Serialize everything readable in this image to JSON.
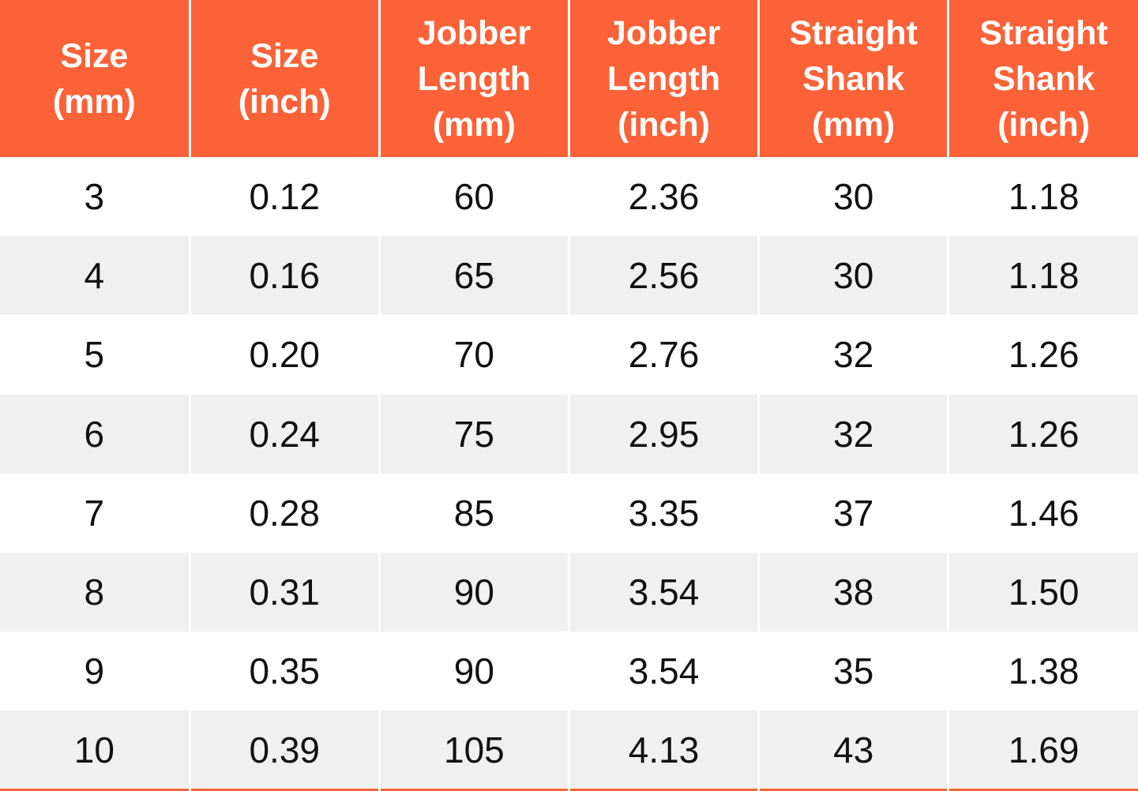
{
  "table": {
    "header": [
      "Size\n(mm)",
      "Size\n(inch)",
      "Jobber\nLength\n(mm)",
      "Jobber\nLength\n(inch)",
      "Straight\nShank\n(mm)",
      "Straight\nShank\n(inch)"
    ],
    "rows": [
      [
        "3",
        "0.12",
        "60",
        "2.36",
        "30",
        "1.18"
      ],
      [
        "4",
        "0.16",
        "65",
        "2.56",
        "30",
        "1.18"
      ],
      [
        "5",
        "0.20",
        "70",
        "2.76",
        "32",
        "1.26"
      ],
      [
        "6",
        "0.24",
        "75",
        "2.95",
        "32",
        "1.26"
      ],
      [
        "7",
        "0.28",
        "85",
        "3.35",
        "37",
        "1.46"
      ],
      [
        "8",
        "0.31",
        "90",
        "3.54",
        "38",
        "1.50"
      ],
      [
        "9",
        "0.35",
        "90",
        "3.54",
        "35",
        "1.38"
      ],
      [
        "10",
        "0.39",
        "105",
        "4.13",
        "43",
        "1.69"
      ]
    ]
  },
  "chart_data": {
    "type": "table",
    "columns": [
      "Size (mm)",
      "Size (inch)",
      "Jobber Length (mm)",
      "Jobber Length (inch)",
      "Straight Shank (mm)",
      "Straight Shank (inch)"
    ],
    "rows": [
      [
        3,
        0.12,
        60,
        2.36,
        30,
        1.18
      ],
      [
        4,
        0.16,
        65,
        2.56,
        30,
        1.18
      ],
      [
        5,
        0.2,
        70,
        2.76,
        32,
        1.26
      ],
      [
        6,
        0.24,
        75,
        2.95,
        32,
        1.26
      ],
      [
        7,
        0.28,
        85,
        3.35,
        37,
        1.46
      ],
      [
        8,
        0.31,
        90,
        3.54,
        38,
        1.5
      ],
      [
        9,
        0.35,
        90,
        3.54,
        35,
        1.38
      ],
      [
        10,
        0.39,
        105,
        4.13,
        43,
        1.69
      ]
    ]
  },
  "colors": {
    "header_bg": "#FC6237",
    "header_text": "#FFFFFF",
    "stripe_bg": "#F0F0F0",
    "row_bg": "#FFFFFF",
    "body_text": "#111111",
    "divider": "#FFFFFF",
    "bottom_border": "#FC6237"
  }
}
